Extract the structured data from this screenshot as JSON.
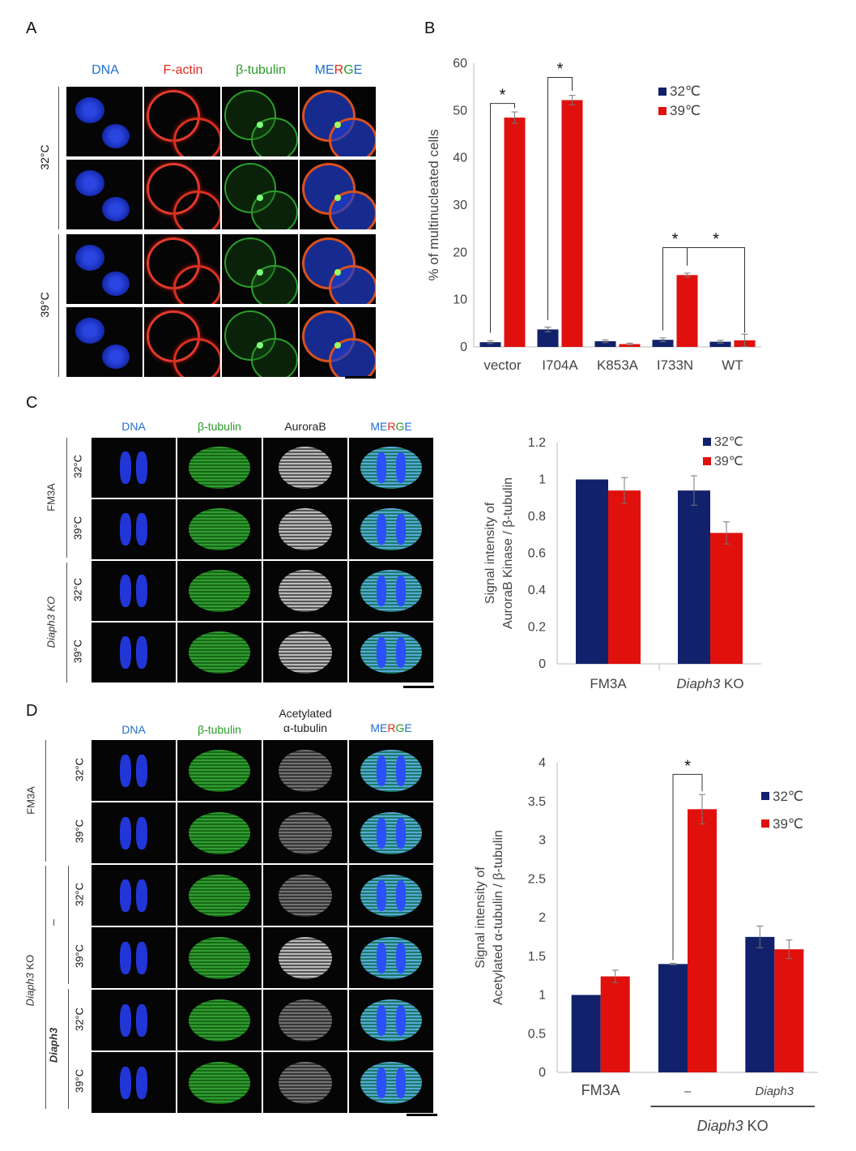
{
  "panel_labels": {
    "a": "A",
    "b": "B",
    "c": "C",
    "d": "D"
  },
  "panelA": {
    "headers": [
      "DNA",
      "F-actin",
      "β-tubulin",
      "MERGE"
    ],
    "rows": [
      "32°C",
      "39°C"
    ],
    "header_colors": {
      "dna": "#1f6fd0",
      "factin": "#e0281e",
      "tubulin": "#2a9a2a"
    }
  },
  "panelC": {
    "headers": [
      "DNA",
      "β-tubulin",
      "AuroraB",
      "MERGE"
    ],
    "rows": [
      "32°C",
      "39°C",
      "32°C",
      "39°C"
    ],
    "groups": [
      "FM3A",
      "Diaph3 KO"
    ]
  },
  "panelD": {
    "headers": [
      "DNA",
      "β-tubulin",
      "Acetylated",
      "α-tubulin",
      "MERGE"
    ],
    "rows": [
      "32°C",
      "39°C",
      "32°C",
      "39°C",
      "32°C",
      "39°C"
    ],
    "groups": [
      "FM3A",
      "Diaph3 KO"
    ],
    "subgroups": [
      "–",
      "Diaph3"
    ]
  },
  "colors": {
    "c32": "#12216b",
    "c39": "#e0100d"
  },
  "chart_data": [
    {
      "type": "bar",
      "ylabel": "% of multinucleated cells",
      "ylim": [
        0,
        60
      ],
      "yticks": [
        0,
        10,
        20,
        30,
        40,
        50,
        60
      ],
      "categories": [
        "vector",
        "I704A",
        "K853A",
        "I733N",
        "WT"
      ],
      "series": [
        {
          "name": "32℃",
          "values": [
            1.0,
            3.7,
            1.2,
            1.5,
            1.1
          ],
          "errors": [
            0.3,
            0.5,
            0.3,
            0.4,
            0.3
          ]
        },
        {
          "name": "39℃",
          "values": [
            48.5,
            52.2,
            0.6,
            15.2,
            1.4
          ],
          "errors": [
            1.2,
            1.0,
            0.2,
            0.4,
            1.3
          ]
        }
      ],
      "significance": [
        {
          "label": "*"
        },
        {
          "label": "*"
        },
        {
          "label": "*"
        },
        {
          "label": "*"
        }
      ]
    },
    {
      "type": "bar",
      "ylabel_lines": [
        "Signal intensity of",
        "AuroraB Kinase / β-tubulin"
      ],
      "ylim": [
        0,
        1.2
      ],
      "yticks": [
        "0",
        "0.2",
        "0.4",
        "0.6",
        "0.8",
        "1",
        "1.2"
      ],
      "categories": [
        "FM3A",
        "Diaph3 KO"
      ],
      "series": [
        {
          "name": "32℃",
          "values": [
            1.0,
            0.94
          ],
          "errors": [
            0.0,
            0.08
          ]
        },
        {
          "name": "39℃",
          "values": [
            0.94,
            0.71
          ],
          "errors": [
            0.07,
            0.06
          ]
        }
      ]
    },
    {
      "type": "bar",
      "ylabel_lines": [
        "Signal intensity of",
        "Acetylated α-tubulin / β-tubulin"
      ],
      "ylim": [
        0,
        4
      ],
      "yticks": [
        "0",
        "0.5",
        "1",
        "1.5",
        "2",
        "2.5",
        "3",
        "3.5",
        "4"
      ],
      "categories": [
        "FM3A",
        "–",
        "Diaph3"
      ],
      "group_label": "Diaph3 KO",
      "series": [
        {
          "name": "32℃",
          "values": [
            1.0,
            1.4,
            1.75
          ],
          "errors": [
            0.0,
            0.01,
            0.14
          ]
        },
        {
          "name": "39℃",
          "values": [
            1.24,
            3.4,
            1.59
          ],
          "errors": [
            0.08,
            0.19,
            0.12
          ]
        }
      ],
      "significance": [
        {
          "label": "*"
        }
      ]
    }
  ]
}
